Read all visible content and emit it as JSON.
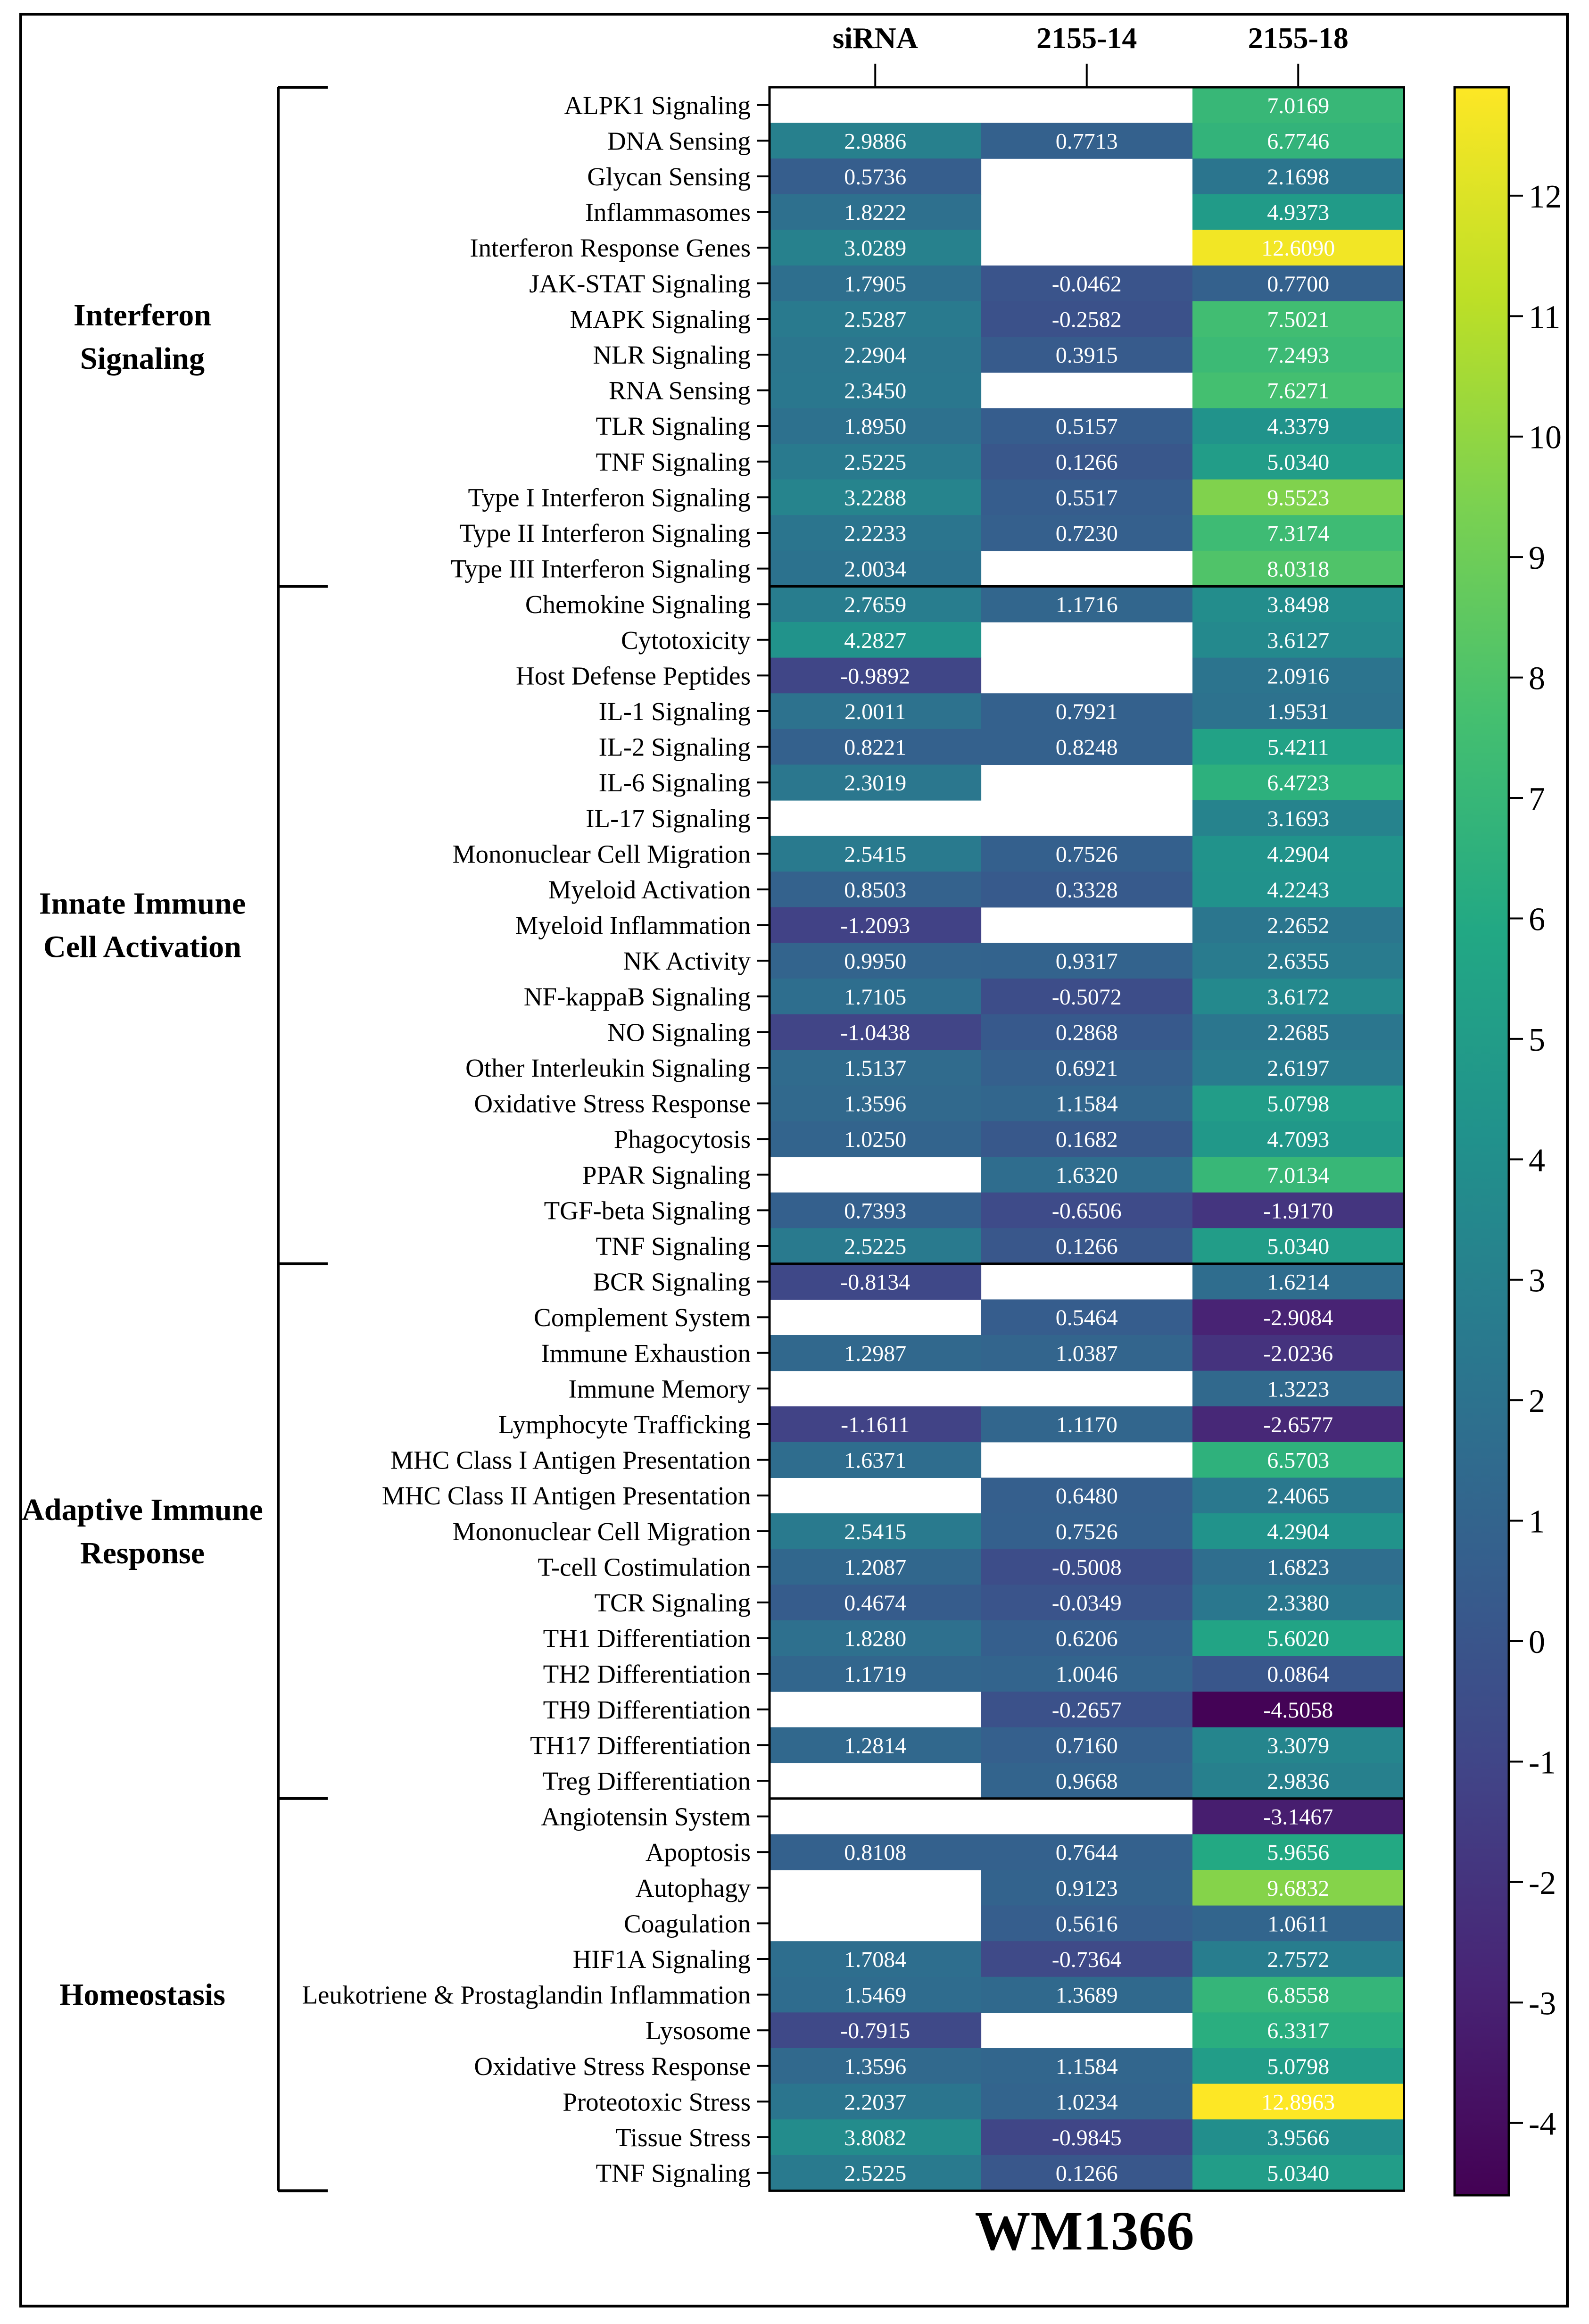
{
  "chart_data": {
    "type": "heatmap",
    "title": "WM1366",
    "columns": [
      "siRNA",
      "2155-14",
      "2155-18"
    ],
    "colorbar": {
      "min": -4.6,
      "max": 12.9,
      "ticks": [
        12,
        11,
        10,
        9,
        8,
        7,
        6,
        5,
        4,
        3,
        2,
        1,
        0,
        -1,
        -2,
        -3,
        -4
      ],
      "colormap": "viridis"
    },
    "groups": [
      {
        "label": [
          "Interferon",
          "Signaling"
        ],
        "row_start": 0,
        "row_end": 13
      },
      {
        "label": [
          "Innate Immune",
          "Cell  Activation"
        ],
        "row_start": 14,
        "row_end": 32
      },
      {
        "label": [
          "Adaptive Immune",
          "Response"
        ],
        "row_start": 33,
        "row_end": 47
      },
      {
        "label": [
          "Homeostasis"
        ],
        "row_start": 48,
        "row_end": 58
      }
    ],
    "rows": [
      {
        "label": "ALPK1 Signaling",
        "values": [
          null,
          null,
          7.0169
        ]
      },
      {
        "label": "DNA Sensing",
        "values": [
          2.9886,
          0.7713,
          6.7746
        ]
      },
      {
        "label": "Glycan Sensing",
        "values": [
          0.5736,
          null,
          2.1698
        ]
      },
      {
        "label": "Inflammasomes",
        "values": [
          1.8222,
          null,
          4.9373
        ]
      },
      {
        "label": "Interferon Response Genes",
        "values": [
          3.0289,
          null,
          12.609
        ]
      },
      {
        "label": "JAK-STAT Signaling",
        "values": [
          1.7905,
          -0.0462,
          0.77
        ]
      },
      {
        "label": "MAPK Signaling",
        "values": [
          2.5287,
          -0.2582,
          7.5021
        ]
      },
      {
        "label": "NLR Signaling",
        "values": [
          2.2904,
          0.3915,
          7.2493
        ]
      },
      {
        "label": "RNA Sensing",
        "values": [
          2.345,
          null,
          7.6271
        ]
      },
      {
        "label": "TLR Signaling",
        "values": [
          1.895,
          0.5157,
          4.3379
        ]
      },
      {
        "label": "TNF Signaling",
        "values": [
          2.5225,
          0.1266,
          5.034
        ]
      },
      {
        "label": "Type I Interferon Signaling",
        "values": [
          3.2288,
          0.5517,
          9.5523
        ]
      },
      {
        "label": "Type II Interferon Signaling",
        "values": [
          2.2233,
          0.723,
          7.3174
        ]
      },
      {
        "label": "Type III Interferon Signaling",
        "values": [
          2.0034,
          null,
          8.0318
        ]
      },
      {
        "label": "Chemokine Signaling",
        "values": [
          2.7659,
          1.1716,
          3.8498
        ]
      },
      {
        "label": "Cytotoxicity",
        "values": [
          4.2827,
          null,
          3.6127
        ]
      },
      {
        "label": "Host Defense Peptides",
        "values": [
          -0.9892,
          null,
          2.0916
        ]
      },
      {
        "label": "IL-1 Signaling",
        "values": [
          2.0011,
          0.7921,
          1.9531
        ]
      },
      {
        "label": "IL-2 Signaling",
        "values": [
          0.8221,
          0.8248,
          5.4211
        ]
      },
      {
        "label": "IL-6 Signaling",
        "values": [
          2.3019,
          null,
          6.4723
        ]
      },
      {
        "label": "IL-17 Signaling",
        "values": [
          null,
          null,
          3.1693
        ]
      },
      {
        "label": "Mononuclear Cell Migration",
        "values": [
          2.5415,
          0.7526,
          4.2904
        ]
      },
      {
        "label": "Myeloid Activation",
        "values": [
          0.8503,
          0.3328,
          4.2243
        ]
      },
      {
        "label": "Myeloid Inflammation",
        "values": [
          -1.2093,
          null,
          2.2652
        ]
      },
      {
        "label": "NK Activity",
        "values": [
          0.995,
          0.9317,
          2.6355
        ]
      },
      {
        "label": "NF-kappaB Signaling",
        "values": [
          1.7105,
          -0.5072,
          3.6172
        ]
      },
      {
        "label": "NO Signaling",
        "values": [
          -1.0438,
          0.2868,
          2.2685
        ]
      },
      {
        "label": "Other Interleukin Signaling",
        "values": [
          1.5137,
          0.6921,
          2.6197
        ]
      },
      {
        "label": "Oxidative Stress Response",
        "values": [
          1.3596,
          1.1584,
          5.0798
        ]
      },
      {
        "label": "Phagocytosis",
        "values": [
          1.025,
          0.1682,
          4.7093
        ]
      },
      {
        "label": "PPAR Signaling",
        "values": [
          null,
          1.632,
          7.0134
        ]
      },
      {
        "label": "TGF-beta Signaling",
        "values": [
          0.7393,
          -0.6506,
          -1.917
        ]
      },
      {
        "label": "TNF Signaling",
        "values": [
          2.5225,
          0.1266,
          5.034
        ]
      },
      {
        "label": "BCR Signaling",
        "values": [
          -0.8134,
          null,
          1.6214
        ]
      },
      {
        "label": "Complement System",
        "values": [
          null,
          0.5464,
          -2.9084
        ]
      },
      {
        "label": "Immune Exhaustion",
        "values": [
          1.2987,
          1.0387,
          -2.0236
        ]
      },
      {
        "label": "Immune Memory",
        "values": [
          null,
          null,
          1.3223
        ]
      },
      {
        "label": "Lymphocyte Trafficking",
        "values": [
          -1.1611,
          1.117,
          -2.6577
        ]
      },
      {
        "label": "MHC Class I Antigen Presentation",
        "values": [
          1.6371,
          null,
          6.5703
        ]
      },
      {
        "label": "MHC Class II Antigen Presentation",
        "values": [
          null,
          0.648,
          2.4065
        ]
      },
      {
        "label": "Mononuclear Cell Migration",
        "values": [
          2.5415,
          0.7526,
          4.2904
        ]
      },
      {
        "label": "T-cell Costimulation",
        "values": [
          1.2087,
          -0.5008,
          1.6823
        ]
      },
      {
        "label": "TCR Signaling",
        "values": [
          0.4674,
          -0.0349,
          2.338
        ]
      },
      {
        "label": "TH1 Differentiation",
        "values": [
          1.828,
          0.6206,
          5.602
        ]
      },
      {
        "label": "TH2 Differentiation",
        "values": [
          1.1719,
          1.0046,
          0.0864
        ]
      },
      {
        "label": "TH9 Differentiation",
        "values": [
          null,
          -0.2657,
          -4.5058
        ]
      },
      {
        "label": "TH17 Differentiation",
        "values": [
          1.2814,
          0.716,
          3.3079
        ]
      },
      {
        "label": "Treg Differentiation",
        "values": [
          null,
          0.9668,
          2.9836
        ]
      },
      {
        "label": "Angiotensin System",
        "values": [
          null,
          null,
          -3.1467
        ]
      },
      {
        "label": "Apoptosis",
        "values": [
          0.8108,
          0.7644,
          5.9656
        ]
      },
      {
        "label": "Autophagy",
        "values": [
          null,
          0.9123,
          9.6832
        ]
      },
      {
        "label": "Coagulation",
        "values": [
          null,
          0.5616,
          1.0611
        ]
      },
      {
        "label": "HIF1A Signaling",
        "values": [
          1.7084,
          -0.7364,
          2.7572
        ]
      },
      {
        "label": "Leukotriene & Prostaglandin Inflammation",
        "values": [
          1.5469,
          1.3689,
          6.8558
        ]
      },
      {
        "label": "Lysosome",
        "values": [
          -0.7915,
          null,
          6.3317
        ]
      },
      {
        "label": "Oxidative Stress Response",
        "values": [
          1.3596,
          1.1584,
          5.0798
        ]
      },
      {
        "label": "Proteotoxic Stress",
        "values": [
          2.2037,
          1.0234,
          12.8963
        ]
      },
      {
        "label": "Tissue Stress",
        "values": [
          3.8082,
          -0.9845,
          3.9566
        ]
      },
      {
        "label": "TNF Signaling",
        "values": [
          2.5225,
          0.1266,
          5.034
        ]
      }
    ]
  }
}
